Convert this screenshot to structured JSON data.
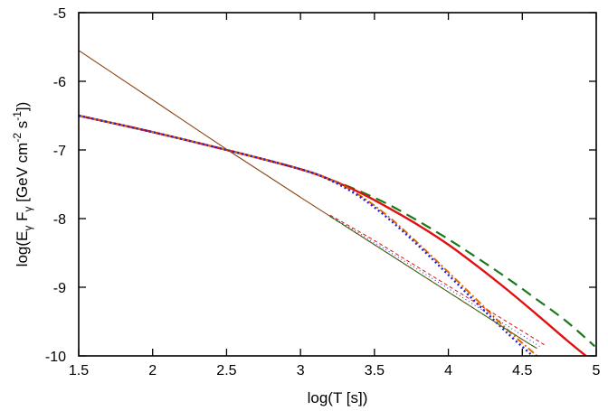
{
  "chart_data": {
    "type": "line",
    "title": "",
    "xlabel": "log(T [s])",
    "ylabel": {
      "parts": [
        "log(E",
        "γ",
        " F",
        "γ",
        " [GeV cm",
        "-2",
        " s",
        "-1",
        "])"
      ]
    },
    "xlim": [
      1.5,
      5
    ],
    "ylim": [
      -10,
      -5
    ],
    "xticks": [
      1.5,
      2,
      2.5,
      3,
      3.5,
      4,
      4.5,
      5
    ],
    "xtick_labels": [
      "1.5",
      "2",
      "2.5",
      "3",
      "3.5",
      "4",
      "4.5",
      "5"
    ],
    "yticks": [
      -10,
      -9,
      -8,
      -7,
      -6,
      -5
    ],
    "ytick_labels": [
      "-10",
      "-9",
      "-8",
      "-7",
      "-6",
      "-5"
    ],
    "grid": false,
    "series": [
      {
        "color": "#1a7a1a",
        "dash": "12,7",
        "width": 2.2,
        "x": [
          1.5,
          2.0,
          2.5,
          3.0,
          3.2,
          3.4,
          3.6,
          3.8,
          4.0,
          4.2,
          4.4,
          4.6,
          4.8,
          4.99
        ],
        "y": [
          -6.5,
          -6.74,
          -7.0,
          -7.28,
          -7.43,
          -7.6,
          -7.8,
          -8.04,
          -8.3,
          -8.58,
          -8.87,
          -9.18,
          -9.5,
          -9.86
        ]
      },
      {
        "color": "#e01010",
        "dash": "",
        "width": 2.4,
        "x": [
          1.5,
          2.0,
          2.5,
          3.0,
          3.2,
          3.4,
          3.6,
          3.8,
          4.0,
          4.2,
          4.4,
          4.6,
          4.8,
          4.93
        ],
        "y": [
          -6.5,
          -6.74,
          -7.0,
          -7.28,
          -7.43,
          -7.62,
          -7.85,
          -8.1,
          -8.38,
          -8.7,
          -9.04,
          -9.4,
          -9.77,
          -10.0
        ]
      },
      {
        "color": "#e06a00",
        "dash": "8,3,2,3",
        "width": 2.0,
        "x": [
          1.5,
          2.0,
          2.5,
          3.0,
          3.2,
          3.4,
          3.6,
          3.8,
          4.0,
          4.2,
          4.4,
          4.6
        ],
        "y": [
          -6.5,
          -6.74,
          -7.0,
          -7.28,
          -7.43,
          -7.66,
          -7.98,
          -8.37,
          -8.78,
          -9.2,
          -9.62,
          -10.0
        ]
      },
      {
        "color": "#2020d0",
        "dash": "2,3",
        "width": 2.4,
        "x": [
          1.5,
          2.0,
          2.5,
          3.0,
          3.2,
          3.4,
          3.6,
          3.8,
          4.0,
          4.2,
          4.4,
          4.57
        ],
        "y": [
          -6.5,
          -6.74,
          -7.0,
          -7.28,
          -7.44,
          -7.68,
          -8.01,
          -8.4,
          -8.82,
          -9.25,
          -9.67,
          -10.0
        ]
      },
      {
        "color": "#8b4513",
        "dash": "",
        "width": 1.1,
        "x": [
          1.5,
          2.0,
          2.5,
          3.0,
          3.5,
          4.0,
          4.5,
          4.6
        ],
        "y": [
          -5.55,
          -6.27,
          -6.99,
          -7.69,
          -8.38,
          -9.07,
          -9.76,
          -9.89
        ]
      },
      {
        "color": "#1a7a1a",
        "dash": "5,3",
        "width": 1.0,
        "x": [
          3.2,
          3.5,
          4.0,
          4.5,
          4.6
        ],
        "y": [
          -7.97,
          -8.38,
          -9.07,
          -9.76,
          -9.89
        ]
      },
      {
        "color": "#e01010",
        "dash": "4,3",
        "width": 1.0,
        "x": [
          3.2,
          3.5,
          4.0,
          4.5,
          4.65
        ],
        "y": [
          -7.95,
          -8.32,
          -8.98,
          -9.64,
          -9.84
        ]
      },
      {
        "color": "#2020d0",
        "dash": "1,3",
        "width": 1.0,
        "x": [
          3.2,
          3.5,
          4.0,
          4.5,
          4.63
        ],
        "y": [
          -7.96,
          -8.35,
          -9.02,
          -9.7,
          -9.88
        ]
      }
    ]
  }
}
